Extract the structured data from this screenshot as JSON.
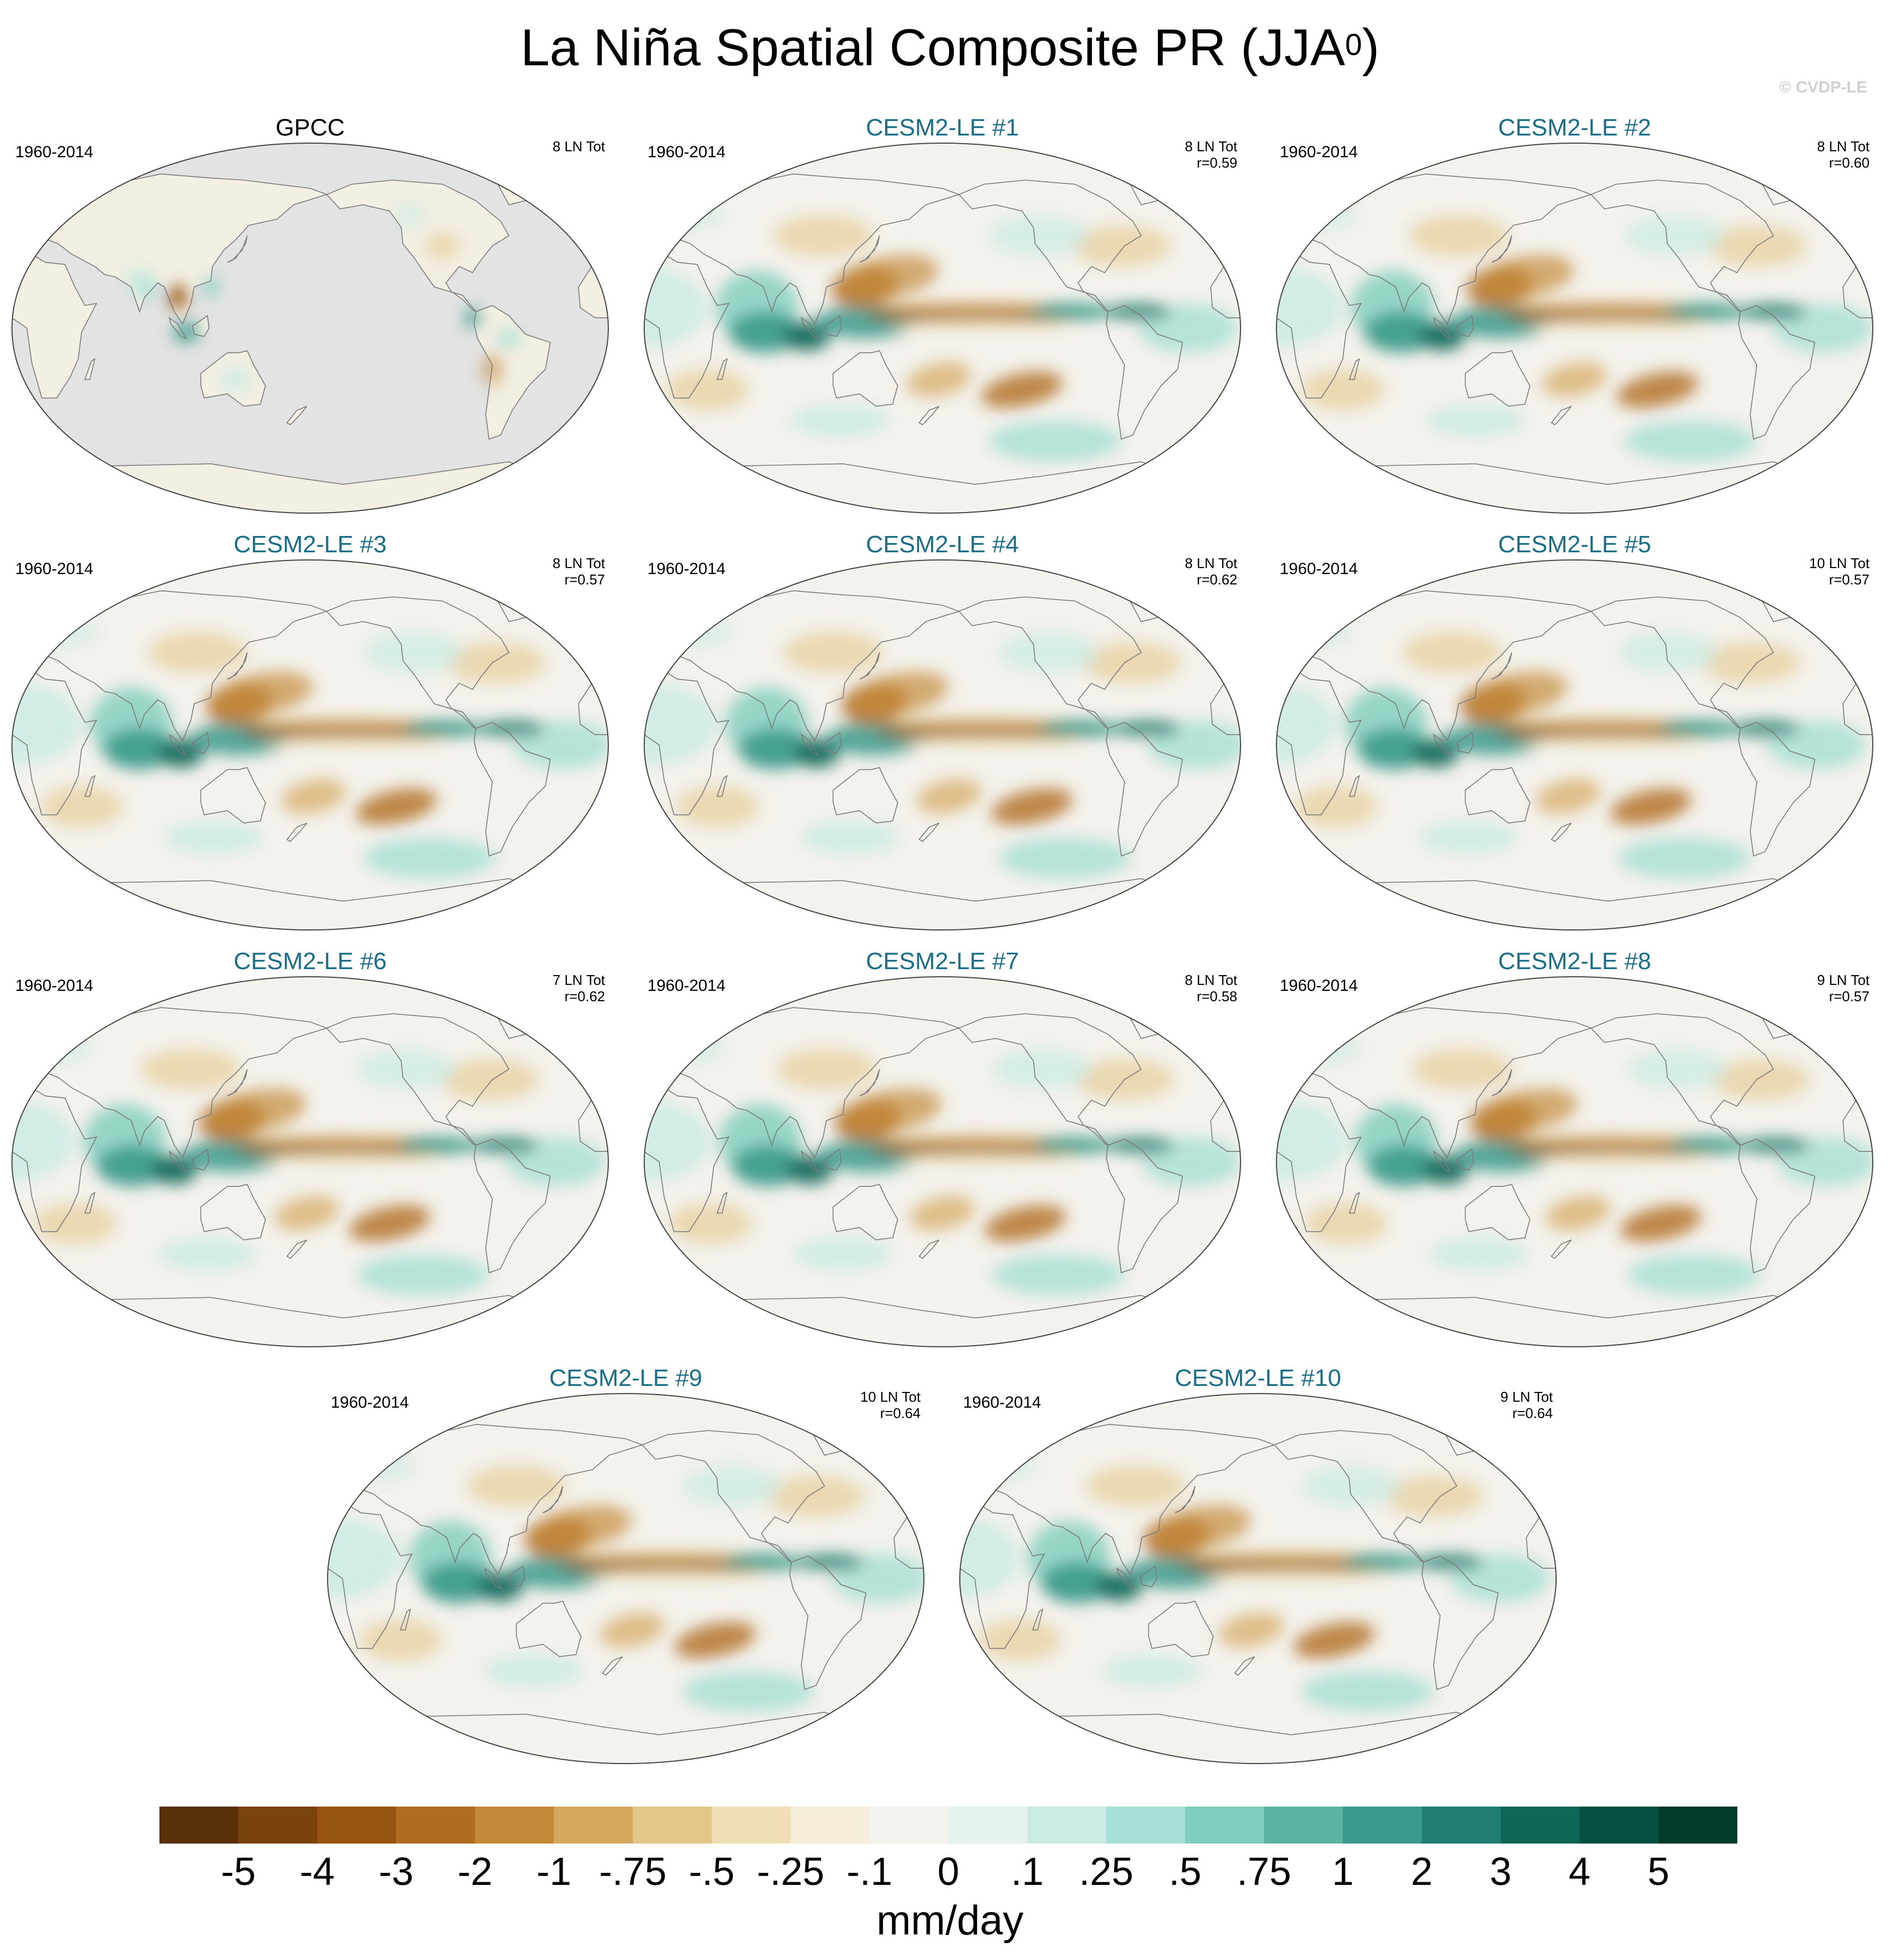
{
  "title": {
    "text": "La Niña Spatial Composite PR (JJA",
    "sup": "0",
    "close": ")"
  },
  "watermark": "© CVDP-LE",
  "panels": [
    {
      "title": "GPCC",
      "kind": "obs",
      "period": "1960-2014",
      "count": "8 LN Tot",
      "corr": ""
    },
    {
      "title": "CESM2-LE #1",
      "kind": "model",
      "period": "1960-2014",
      "count": "8 LN Tot",
      "corr": "r=0.59"
    },
    {
      "title": "CESM2-LE #2",
      "kind": "model",
      "period": "1960-2014",
      "count": "8 LN Tot",
      "corr": "r=0.60"
    },
    {
      "title": "CESM2-LE #3",
      "kind": "model",
      "period": "1960-2014",
      "count": "8 LN Tot",
      "corr": "r=0.57"
    },
    {
      "title": "CESM2-LE #4",
      "kind": "model",
      "period": "1960-2014",
      "count": "8 LN Tot",
      "corr": "r=0.62"
    },
    {
      "title": "CESM2-LE #5",
      "kind": "model",
      "period": "1960-2014",
      "count": "10 LN Tot",
      "corr": "r=0.57"
    },
    {
      "title": "CESM2-LE #6",
      "kind": "model",
      "period": "1960-2014",
      "count": "7 LN Tot",
      "corr": "r=0.62"
    },
    {
      "title": "CESM2-LE #7",
      "kind": "model",
      "period": "1960-2014",
      "count": "8 LN Tot",
      "corr": "r=0.58"
    },
    {
      "title": "CESM2-LE #8",
      "kind": "model",
      "period": "1960-2014",
      "count": "9 LN Tot",
      "corr": "r=0.57"
    },
    {
      "title": "CESM2-LE #9",
      "kind": "model",
      "period": "1960-2014",
      "count": "10 LN Tot",
      "corr": "r=0.64"
    },
    {
      "title": "CESM2-LE #10",
      "kind": "model",
      "period": "1960-2014",
      "count": "9 LN Tot",
      "corr": "r=0.64"
    }
  ],
  "colorbar": {
    "colors": [
      "#5a300a",
      "#7a420d",
      "#975411",
      "#b06d22",
      "#c48a3a",
      "#d5a860",
      "#e5c68a",
      "#f1deb4",
      "#f6eedb",
      "#f4f2ec",
      "#e4f2ef",
      "#c9ebe3",
      "#a6dfd4",
      "#7ecdbd",
      "#5bb3a3",
      "#3a9a8b",
      "#207e71",
      "#0f6659",
      "#06503f",
      "#013b2d"
    ],
    "ticks": [
      "-5",
      "-4",
      "-3",
      "-2",
      "-1",
      "-.75",
      "-.5",
      "-.25",
      "-.1",
      "0",
      ".1",
      ".25",
      ".5",
      ".75",
      "1",
      "2",
      "3",
      "4",
      "5"
    ],
    "unit": "mm/day"
  }
}
